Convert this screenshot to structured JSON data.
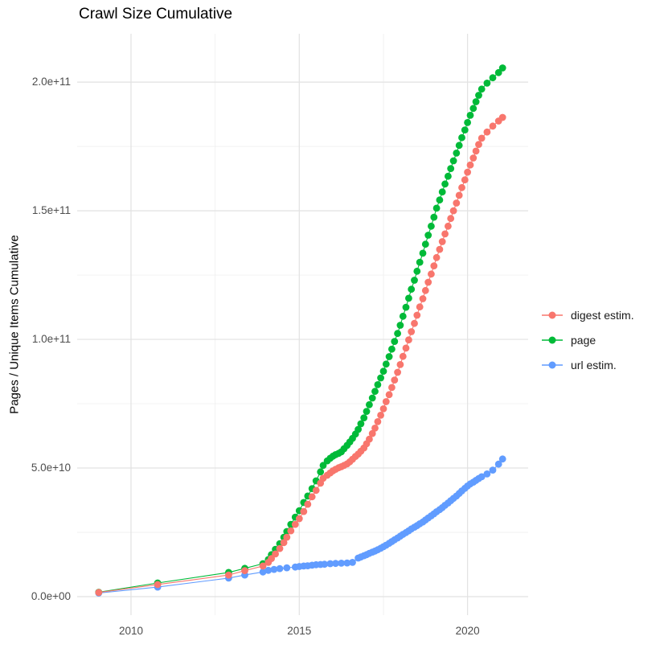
{
  "page": {
    "title": "Crawl Size Cumulative"
  },
  "styles": {
    "background": "#ffffff",
    "grid_major_color": "#e2e2e2",
    "grid_minor_color": "#f0f0f0",
    "tick_label_color": "#4d4d4d",
    "title_color": "#000000"
  },
  "chart_data": {
    "type": "scatter",
    "title": "Crawl Size Cumulative",
    "xlabel": "",
    "ylabel": "Pages / Unique Items Cumulative",
    "grid": true,
    "legend_position": "right",
    "value_unit": "1e9 (billions of pages / unique items)",
    "xlim": [
      2008.4,
      2021.8
    ],
    "ylim_e9": [
      -7.2,
      218.8
    ],
    "x_ticks": {
      "values": [
        2010,
        2015,
        2020
      ],
      "labels": [
        "2010",
        "2015",
        "2020"
      ]
    },
    "x_minor_ticks": [
      2012.5,
      2017.5
    ],
    "y_ticks": {
      "values_e9": [
        0,
        50,
        100,
        150,
        200
      ],
      "labels": [
        "0.0e+00",
        "5.0e+10",
        "1.0e+11",
        "1.5e+11",
        "2.0e+11"
      ]
    },
    "y_minor_ticks_e9": [
      25,
      75,
      125,
      175
    ],
    "series": [
      {
        "name": "digest estim.",
        "color": "#F8766D",
        "points_year_value_e9": [
          [
            2009.04,
            1.6
          ],
          [
            2010.79,
            4.7
          ],
          [
            2012.9,
            8.4
          ],
          [
            2013.38,
            10.1
          ],
          [
            2013.92,
            11.9
          ],
          [
            2014.08,
            13.3
          ],
          [
            2014.17,
            14.8
          ],
          [
            2014.29,
            16.6
          ],
          [
            2014.42,
            18.7
          ],
          [
            2014.54,
            21.0
          ],
          [
            2014.63,
            23.1
          ],
          [
            2014.75,
            25.6
          ],
          [
            2014.88,
            28.1
          ],
          [
            2015.0,
            30.3
          ],
          [
            2015.13,
            33.1
          ],
          [
            2015.25,
            35.9
          ],
          [
            2015.38,
            38.8
          ],
          [
            2015.5,
            41.3
          ],
          [
            2015.63,
            44.1
          ],
          [
            2015.71,
            46.0
          ],
          [
            2015.83,
            47.2
          ],
          [
            2015.92,
            48.1
          ],
          [
            2016.0,
            48.9
          ],
          [
            2016.08,
            49.5
          ],
          [
            2016.17,
            50.1
          ],
          [
            2016.25,
            50.5
          ],
          [
            2016.33,
            51.0
          ],
          [
            2016.42,
            51.6
          ],
          [
            2016.5,
            52.4
          ],
          [
            2016.58,
            53.4
          ],
          [
            2016.67,
            54.5
          ],
          [
            2016.75,
            55.4
          ],
          [
            2016.83,
            56.5
          ],
          [
            2016.92,
            57.8
          ],
          [
            2017.0,
            59.4
          ],
          [
            2017.08,
            61.2
          ],
          [
            2017.17,
            63.4
          ],
          [
            2017.25,
            65.5
          ],
          [
            2017.33,
            68.0
          ],
          [
            2017.42,
            70.5
          ],
          [
            2017.5,
            73.0
          ],
          [
            2017.58,
            75.8
          ],
          [
            2017.67,
            78.5
          ],
          [
            2017.75,
            81.3
          ],
          [
            2017.83,
            84.2
          ],
          [
            2017.92,
            87.2
          ],
          [
            2018.0,
            90.2
          ],
          [
            2018.08,
            93.4
          ],
          [
            2018.17,
            96.6
          ],
          [
            2018.25,
            99.8
          ],
          [
            2018.33,
            103.0
          ],
          [
            2018.42,
            106.2
          ],
          [
            2018.5,
            109.4
          ],
          [
            2018.58,
            112.6
          ],
          [
            2018.67,
            115.8
          ],
          [
            2018.75,
            119.0
          ],
          [
            2018.83,
            122.2
          ],
          [
            2018.92,
            125.4
          ],
          [
            2019.0,
            128.6
          ],
          [
            2019.08,
            131.8
          ],
          [
            2019.17,
            135.0
          ],
          [
            2019.25,
            138.0
          ],
          [
            2019.33,
            141.0
          ],
          [
            2019.42,
            144.0
          ],
          [
            2019.5,
            147.0
          ],
          [
            2019.58,
            150.0
          ],
          [
            2019.67,
            153.0
          ],
          [
            2019.75,
            156.0
          ],
          [
            2019.83,
            159.0
          ],
          [
            2019.92,
            162.0
          ],
          [
            2020.0,
            165.0
          ],
          [
            2020.08,
            167.8
          ],
          [
            2020.17,
            170.5
          ],
          [
            2020.25,
            173.2
          ],
          [
            2020.33,
            175.8
          ],
          [
            2020.42,
            178.2
          ],
          [
            2020.58,
            180.6
          ],
          [
            2020.75,
            182.9
          ],
          [
            2020.92,
            184.9
          ],
          [
            2021.04,
            186.3
          ]
        ]
      },
      {
        "name": "page",
        "color": "#00BA38",
        "points_year_value_e9": [
          [
            2009.04,
            1.7
          ],
          [
            2010.79,
            5.3
          ],
          [
            2012.9,
            9.4
          ],
          [
            2013.38,
            11.0
          ],
          [
            2013.92,
            12.8
          ],
          [
            2014.08,
            14.4
          ],
          [
            2014.17,
            16.3
          ],
          [
            2014.29,
            18.4
          ],
          [
            2014.42,
            20.6
          ],
          [
            2014.54,
            23.1
          ],
          [
            2014.63,
            25.3
          ],
          [
            2014.75,
            28.1
          ],
          [
            2014.88,
            30.9
          ],
          [
            2015.0,
            33.4
          ],
          [
            2015.13,
            36.6
          ],
          [
            2015.25,
            39.1
          ],
          [
            2015.38,
            42.0
          ],
          [
            2015.5,
            45.0
          ],
          [
            2015.63,
            48.5
          ],
          [
            2015.71,
            51.0
          ],
          [
            2015.83,
            52.8
          ],
          [
            2015.92,
            53.8
          ],
          [
            2016.0,
            54.6
          ],
          [
            2016.08,
            55.2
          ],
          [
            2016.17,
            55.7
          ],
          [
            2016.25,
            56.3
          ],
          [
            2016.33,
            57.5
          ],
          [
            2016.42,
            58.8
          ],
          [
            2016.5,
            60.1
          ],
          [
            2016.58,
            61.5
          ],
          [
            2016.67,
            63.2
          ],
          [
            2016.75,
            65.0
          ],
          [
            2016.83,
            67.2
          ],
          [
            2016.92,
            69.5
          ],
          [
            2017.0,
            72.0
          ],
          [
            2017.08,
            74.6
          ],
          [
            2017.17,
            77.2
          ],
          [
            2017.25,
            79.8
          ],
          [
            2017.33,
            82.4
          ],
          [
            2017.42,
            85.0
          ],
          [
            2017.5,
            87.6
          ],
          [
            2017.58,
            90.4
          ],
          [
            2017.67,
            93.3
          ],
          [
            2017.75,
            96.2
          ],
          [
            2017.83,
            99.2
          ],
          [
            2017.92,
            102.3
          ],
          [
            2018.0,
            105.5
          ],
          [
            2018.08,
            109.0
          ],
          [
            2018.17,
            112.5
          ],
          [
            2018.25,
            116.0
          ],
          [
            2018.33,
            119.5
          ],
          [
            2018.42,
            123.0
          ],
          [
            2018.5,
            126.5
          ],
          [
            2018.58,
            130.0
          ],
          [
            2018.67,
            133.5
          ],
          [
            2018.75,
            137.0
          ],
          [
            2018.83,
            140.5
          ],
          [
            2018.92,
            144.0
          ],
          [
            2019.0,
            147.5
          ],
          [
            2019.08,
            151.0
          ],
          [
            2019.17,
            154.2
          ],
          [
            2019.25,
            157.3
          ],
          [
            2019.33,
            160.4
          ],
          [
            2019.42,
            163.4
          ],
          [
            2019.5,
            166.4
          ],
          [
            2019.58,
            169.4
          ],
          [
            2019.67,
            172.4
          ],
          [
            2019.75,
            175.4
          ],
          [
            2019.83,
            178.4
          ],
          [
            2019.92,
            181.4
          ],
          [
            2020.0,
            184.3
          ],
          [
            2020.08,
            187.1
          ],
          [
            2020.17,
            189.8
          ],
          [
            2020.25,
            192.4
          ],
          [
            2020.33,
            194.9
          ],
          [
            2020.42,
            197.3
          ],
          [
            2020.58,
            199.6
          ],
          [
            2020.75,
            201.7
          ],
          [
            2020.92,
            203.7
          ],
          [
            2021.04,
            205.5
          ]
        ]
      },
      {
        "name": "url estim.",
        "color": "#619CFF",
        "points_year_value_e9": [
          [
            2009.04,
            1.4
          ],
          [
            2010.79,
            3.7
          ],
          [
            2012.9,
            7.2
          ],
          [
            2013.38,
            8.4
          ],
          [
            2013.92,
            9.6
          ],
          [
            2014.08,
            10.2
          ],
          [
            2014.25,
            10.6
          ],
          [
            2014.42,
            10.9
          ],
          [
            2014.63,
            11.2
          ],
          [
            2014.88,
            11.5
          ],
          [
            2015.0,
            11.7
          ],
          [
            2015.13,
            11.9
          ],
          [
            2015.25,
            12.0
          ],
          [
            2015.38,
            12.2
          ],
          [
            2015.5,
            12.4
          ],
          [
            2015.63,
            12.5
          ],
          [
            2015.75,
            12.6
          ],
          [
            2015.92,
            12.8
          ],
          [
            2016.08,
            12.9
          ],
          [
            2016.25,
            13.0
          ],
          [
            2016.42,
            13.1
          ],
          [
            2016.58,
            13.3
          ],
          [
            2016.75,
            15.0
          ],
          [
            2016.83,
            15.4
          ],
          [
            2016.92,
            15.9
          ],
          [
            2017.0,
            16.3
          ],
          [
            2017.08,
            16.8
          ],
          [
            2017.17,
            17.3
          ],
          [
            2017.25,
            17.7
          ],
          [
            2017.33,
            18.2
          ],
          [
            2017.42,
            18.8
          ],
          [
            2017.5,
            19.4
          ],
          [
            2017.58,
            20.0
          ],
          [
            2017.67,
            20.7
          ],
          [
            2017.75,
            21.4
          ],
          [
            2017.83,
            22.1
          ],
          [
            2017.92,
            22.8
          ],
          [
            2018.0,
            23.5
          ],
          [
            2018.08,
            24.2
          ],
          [
            2018.17,
            24.9
          ],
          [
            2018.25,
            25.6
          ],
          [
            2018.33,
            26.3
          ],
          [
            2018.42,
            27.0
          ],
          [
            2018.5,
            27.6
          ],
          [
            2018.58,
            28.3
          ],
          [
            2018.67,
            29.0
          ],
          [
            2018.75,
            29.8
          ],
          [
            2018.83,
            30.6
          ],
          [
            2018.92,
            31.4
          ],
          [
            2019.0,
            32.2
          ],
          [
            2019.08,
            33.0
          ],
          [
            2019.17,
            33.8
          ],
          [
            2019.25,
            34.6
          ],
          [
            2019.33,
            35.5
          ],
          [
            2019.42,
            36.4
          ],
          [
            2019.5,
            37.3
          ],
          [
            2019.58,
            38.2
          ],
          [
            2019.67,
            39.1
          ],
          [
            2019.75,
            40.1
          ],
          [
            2019.83,
            41.1
          ],
          [
            2019.92,
            42.1
          ],
          [
            2020.0,
            43.0
          ],
          [
            2020.08,
            43.8
          ],
          [
            2020.17,
            44.5
          ],
          [
            2020.25,
            45.2
          ],
          [
            2020.33,
            45.9
          ],
          [
            2020.42,
            46.6
          ],
          [
            2020.58,
            47.7
          ],
          [
            2020.75,
            49.2
          ],
          [
            2020.92,
            51.5
          ],
          [
            2021.04,
            53.5
          ]
        ]
      }
    ]
  }
}
